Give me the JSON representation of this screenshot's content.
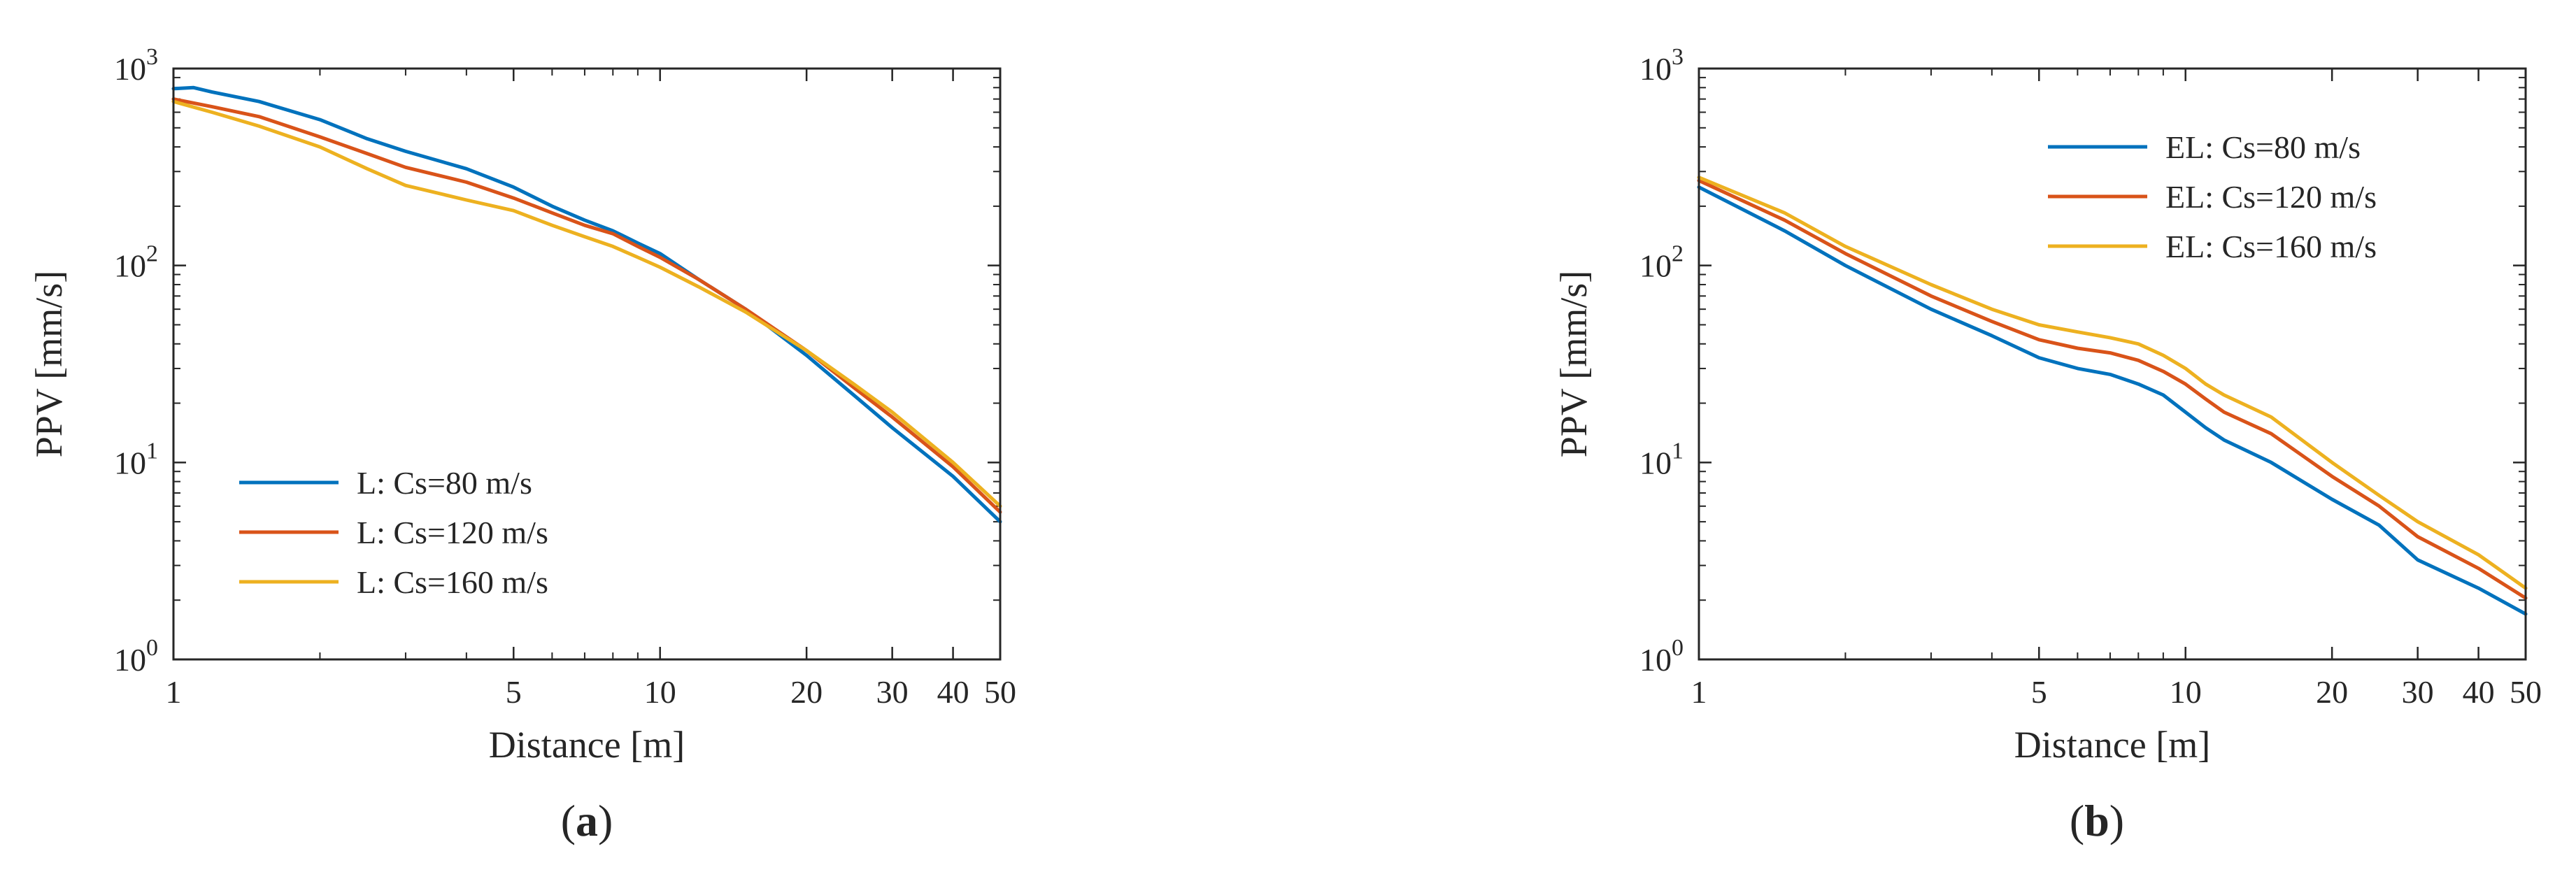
{
  "colors": {
    "series_1": "#0072BD",
    "series_2": "#D95319",
    "series_3": "#EDB120",
    "axes": "#262626"
  },
  "chart_data": [
    {
      "type": "line",
      "panel_label": "a",
      "xlabel": "Distance [m]",
      "ylabel": "PPV [mm/s]",
      "x_scale": "log",
      "y_scale": "log",
      "xlim": [
        1,
        50
      ],
      "ylim": [
        1,
        1000
      ],
      "xticks": [
        1,
        5,
        10,
        20,
        30,
        40,
        50
      ],
      "xtick_labels": [
        "1",
        "5",
        "10",
        "20",
        "30",
        "40",
        "50"
      ],
      "yticks": [
        1,
        10,
        100,
        1000
      ],
      "ytick_bases": [
        "10",
        "10",
        "10",
        "10"
      ],
      "ytick_exponents": [
        "0",
        "1",
        "2",
        "3"
      ],
      "grid": false,
      "legend_position": "bottom-left",
      "series": [
        {
          "name": "L: Cs=80 m/s",
          "color": "#0072BD",
          "x": [
            1,
            1.1,
            1.2,
            1.5,
            2,
            2.5,
            3,
            4,
            5,
            6,
            7,
            8,
            9,
            10,
            12,
            15,
            20,
            25,
            30,
            40,
            50
          ],
          "y": [
            790,
            800,
            760,
            680,
            550,
            440,
            380,
            310,
            250,
            200,
            170,
            150,
            130,
            115,
            85,
            60,
            35,
            22,
            15,
            8.5,
            5
          ]
        },
        {
          "name": "L: Cs=120 m/s",
          "color": "#D95319",
          "x": [
            1,
            1.2,
            1.5,
            2,
            2.5,
            3,
            4,
            5,
            6,
            7,
            8,
            9,
            10,
            12,
            15,
            20,
            25,
            30,
            40,
            50
          ],
          "y": [
            700,
            640,
            570,
            450,
            370,
            315,
            265,
            220,
            185,
            160,
            145,
            125,
            110,
            85,
            60,
            37,
            24,
            17,
            9.5,
            5.6
          ]
        },
        {
          "name": "L: Cs=160 m/s",
          "color": "#EDB120",
          "x": [
            1,
            1.2,
            1.5,
            2,
            2.5,
            3,
            4,
            5,
            6,
            7,
            8,
            9,
            10,
            12,
            15,
            20,
            25,
            30,
            40,
            50
          ],
          "y": [
            680,
            600,
            510,
            400,
            310,
            255,
            215,
            190,
            160,
            140,
            125,
            110,
            98,
            78,
            58,
            37,
            25,
            18,
            10,
            6
          ]
        }
      ]
    },
    {
      "type": "line",
      "panel_label": "b",
      "xlabel": "Distance [m]",
      "ylabel": "PPV [mm/s]",
      "x_scale": "log",
      "y_scale": "log",
      "xlim": [
        1,
        50
      ],
      "ylim": [
        1,
        1000
      ],
      "xticks": [
        1,
        5,
        10,
        20,
        30,
        40,
        50
      ],
      "xtick_labels": [
        "1",
        "5",
        "10",
        "20",
        "30",
        "40",
        "50"
      ],
      "yticks": [
        1,
        10,
        100,
        1000
      ],
      "ytick_bases": [
        "10",
        "10",
        "10",
        "10"
      ],
      "ytick_exponents": [
        "0",
        "1",
        "2",
        "3"
      ],
      "grid": false,
      "legend_position": "top-right",
      "series": [
        {
          "name": "EL: Cs=80 m/s",
          "color": "#0072BD",
          "x": [
            1,
            1.5,
            2,
            3,
            4,
            5,
            6,
            7,
            8,
            9,
            10,
            11,
            12,
            15,
            20,
            25,
            30,
            40,
            50
          ],
          "y": [
            250,
            150,
            100,
            60,
            44,
            34,
            30,
            28,
            25,
            22,
            18,
            15,
            13,
            10,
            6.5,
            4.8,
            3.2,
            2.3,
            1.7
          ]
        },
        {
          "name": "EL: Cs=120 m/s",
          "color": "#D95319",
          "x": [
            1,
            1.5,
            2,
            3,
            4,
            5,
            6,
            7,
            8,
            9,
            10,
            11,
            12,
            15,
            20,
            25,
            30,
            40,
            50
          ],
          "y": [
            270,
            170,
            115,
            70,
            52,
            42,
            38,
            36,
            33,
            29,
            25,
            21,
            18,
            14,
            8.5,
            6,
            4.2,
            2.9,
            2.05
          ]
        },
        {
          "name": "EL: Cs=160 m/s",
          "color": "#EDB120",
          "x": [
            1,
            1.5,
            2,
            3,
            4,
            5,
            6,
            7,
            8,
            9,
            10,
            11,
            12,
            15,
            20,
            25,
            30,
            40,
            50
          ],
          "y": [
            280,
            185,
            125,
            80,
            60,
            50,
            46,
            43,
            40,
            35,
            30,
            25,
            22,
            17,
            10,
            6.8,
            5,
            3.4,
            2.3
          ]
        }
      ]
    }
  ]
}
